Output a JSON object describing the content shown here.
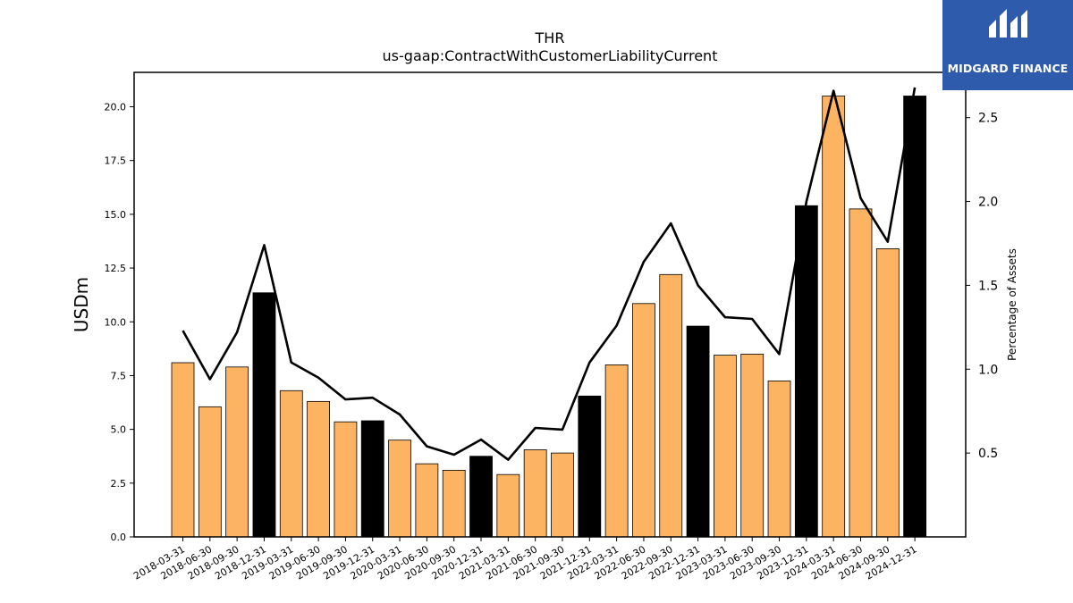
{
  "chart_data": {
    "type": "bar",
    "title": "THR",
    "subtitle": "us-gaap:ContractWithCustomerLiabilityCurrent",
    "xlabel": "",
    "ylabel": "USDm",
    "y2label": "Percentage of Assets",
    "ylim": [
      0,
      21.6
    ],
    "y2lim": [
      0.0,
      2.77
    ],
    "yticks": [
      0.0,
      2.5,
      5.0,
      7.5,
      10.0,
      12.5,
      15.0,
      17.5,
      20.0
    ],
    "ytick_labels": [
      "0.0",
      "2.5",
      "5.0",
      "7.5",
      "10.0",
      "12.5",
      "15.0",
      "17.5",
      "20.0"
    ],
    "y2ticks": [
      0.5,
      1.0,
      1.5,
      2.0,
      2.5
    ],
    "y2tick_labels": [
      "0.5",
      "1.0",
      "1.5",
      "2.0",
      "2.5"
    ],
    "grid": false,
    "categories": [
      "2018-03-31",
      "2018-06-30",
      "2018-09-30",
      "2018-12-31",
      "2019-03-31",
      "2019-06-30",
      "2019-09-30",
      "2019-12-31",
      "2020-03-31",
      "2020-06-30",
      "2020-09-30",
      "2020-12-31",
      "2021-03-31",
      "2021-06-30",
      "2021-09-30",
      "2021-12-31",
      "2022-03-31",
      "2022-06-30",
      "2022-09-30",
      "2022-12-31",
      "2023-03-31",
      "2023-06-30",
      "2023-09-30",
      "2023-12-31",
      "2024-03-31",
      "2024-06-30",
      "2024-09-30",
      "2024-12-31"
    ],
    "series": [
      {
        "kind": "bar",
        "axis": "left",
        "values": [
          8.1,
          6.05,
          7.9,
          11.35,
          6.8,
          6.3,
          5.35,
          5.4,
          4.5,
          3.4,
          3.1,
          3.75,
          2.9,
          4.05,
          3.9,
          6.55,
          8.0,
          10.85,
          12.2,
          9.8,
          8.45,
          8.5,
          7.25,
          15.4,
          20.5,
          15.25,
          13.4,
          20.5
        ],
        "colors": [
          "#fdb462",
          "#fdb462",
          "#fdb462",
          "#000000",
          "#fdb462",
          "#fdb462",
          "#fdb462",
          "#000000",
          "#fdb462",
          "#fdb462",
          "#fdb462",
          "#000000",
          "#fdb462",
          "#fdb462",
          "#fdb462",
          "#000000",
          "#fdb462",
          "#fdb462",
          "#fdb462",
          "#000000",
          "#fdb462",
          "#fdb462",
          "#fdb462",
          "#000000",
          "#fdb462",
          "#fdb462",
          "#fdb462",
          "#000000"
        ]
      },
      {
        "kind": "line",
        "axis": "right",
        "color": "#000000",
        "values": [
          1.23,
          0.94,
          1.22,
          1.74,
          1.04,
          0.95,
          0.82,
          0.83,
          0.73,
          0.54,
          0.49,
          0.58,
          0.46,
          0.65,
          0.64,
          1.04,
          1.26,
          1.64,
          1.87,
          1.5,
          1.31,
          1.3,
          1.09,
          2.0,
          2.66,
          2.02,
          1.76,
          2.68
        ]
      }
    ]
  },
  "logo": {
    "text": "MIDGARD FINANCE",
    "color": "#2f5bad"
  }
}
